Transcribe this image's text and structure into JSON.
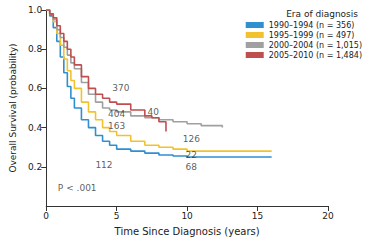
{
  "chart_data": {
    "type": "step",
    "x_label": "Time Since Diagnosis (years)",
    "y_label": "Overall Survival (probability)",
    "legend_title": "Era of diagnosis",
    "legend": "upper right",
    "grid": false,
    "xlim": [
      0,
      20
    ],
    "xticks": [
      0,
      5,
      10,
      15,
      20
    ],
    "ylim": [
      0,
      1
    ],
    "yticks": [
      0.2,
      0.4,
      0.6,
      0.8,
      {
        "value": 1,
        "label": "1.0"
      }
    ],
    "series": [
      {
        "name": "1990–1994 (n = 356)",
        "color": "#2f8fcf",
        "x": [
          0,
          0.25,
          0.5,
          0.75,
          1,
          1.25,
          1.5,
          1.75,
          2,
          2.5,
          3,
          3.5,
          4,
          4.5,
          5,
          6,
          7,
          8,
          9,
          10,
          12,
          14,
          16
        ],
        "values": [
          1,
          0.97,
          0.91,
          0.84,
          0.76,
          0.68,
          0.61,
          0.55,
          0.5,
          0.44,
          0.4,
          0.36,
          0.33,
          0.31,
          0.29,
          0.28,
          0.27,
          0.26,
          0.255,
          0.25,
          0.25,
          0.25,
          0.25
        ]
      },
      {
        "name": "1995–1999 (n = 497)",
        "color": "#f2c22e",
        "x": [
          0,
          0.25,
          0.5,
          0.75,
          1,
          1.25,
          1.5,
          1.75,
          2,
          2.5,
          3,
          3.5,
          4,
          4.5,
          5,
          6,
          7,
          8,
          9,
          10,
          12,
          14,
          16
        ],
        "values": [
          1,
          0.98,
          0.94,
          0.88,
          0.82,
          0.75,
          0.69,
          0.64,
          0.6,
          0.53,
          0.48,
          0.44,
          0.4,
          0.38,
          0.36,
          0.33,
          0.31,
          0.3,
          0.29,
          0.28,
          0.28,
          0.28,
          0.28
        ]
      },
      {
        "name": "2000–2004 (n = 1,015)",
        "color": "#a0a0a0",
        "x": [
          0,
          0.25,
          0.5,
          0.75,
          1,
          1.25,
          1.5,
          1.75,
          2,
          2.5,
          3,
          3.5,
          4,
          4.5,
          5,
          6,
          7,
          8,
          9,
          10,
          11,
          12.5
        ],
        "values": [
          1,
          0.98,
          0.95,
          0.9,
          0.86,
          0.81,
          0.77,
          0.73,
          0.7,
          0.63,
          0.57,
          0.53,
          0.5,
          0.49,
          0.48,
          0.46,
          0.45,
          0.44,
          0.43,
          0.42,
          0.41,
          0.4
        ]
      },
      {
        "name": "2005–2010 (n = 1,484)",
        "color": "#bf4f4f",
        "x": [
          0,
          0.25,
          0.5,
          0.75,
          1,
          1.25,
          1.5,
          1.75,
          2,
          2.5,
          3,
          3.5,
          4,
          4.5,
          5,
          6,
          7,
          7.5,
          8,
          8.5
        ],
        "values": [
          1,
          0.98,
          0.96,
          0.92,
          0.88,
          0.84,
          0.8,
          0.76,
          0.72,
          0.66,
          0.6,
          0.57,
          0.55,
          0.53,
          0.52,
          0.49,
          0.46,
          0.45,
          0.43,
          0.38
        ]
      }
    ],
    "annotations": [
      {
        "text": "370",
        "x": 5.3,
        "y": 0.6,
        "color": "#333333"
      },
      {
        "text": "40",
        "x": 7.6,
        "y": 0.48,
        "color": "#333333"
      },
      {
        "text": "404",
        "x": 5.0,
        "y": 0.47,
        "color": "#333333"
      },
      {
        "text": "163",
        "x": 5.0,
        "y": 0.41,
        "color": "#333333"
      },
      {
        "text": "126",
        "x": 10.3,
        "y": 0.34,
        "color": "#333333"
      },
      {
        "text": "22",
        "x": 10.3,
        "y": 0.26,
        "color": "#333333"
      },
      {
        "text": "112",
        "x": 4.1,
        "y": 0.21,
        "color": "#333333"
      },
      {
        "text": "68",
        "x": 10.3,
        "y": 0.2,
        "color": "#333333"
      },
      {
        "text": "P < .001",
        "x": 2.2,
        "y": 0.09,
        "color": "#333333"
      }
    ]
  }
}
